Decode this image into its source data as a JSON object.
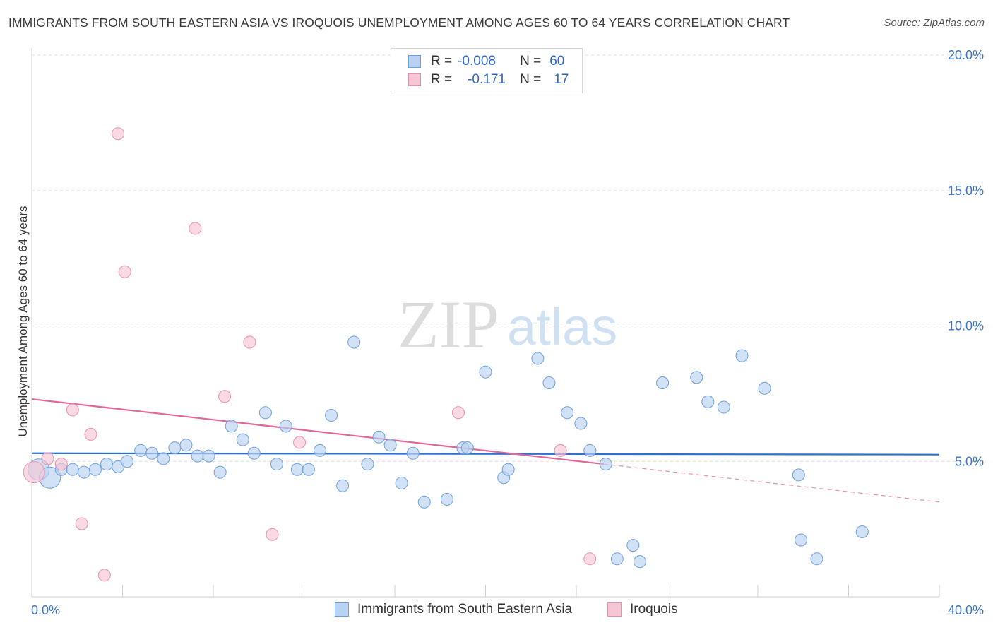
{
  "title": "IMMIGRANTS FROM SOUTH EASTERN ASIA VS IROQUOIS UNEMPLOYMENT AMONG AGES 60 TO 64 YEARS CORRELATION CHART",
  "source": "Source: ZipAtlas.com",
  "watermark": {
    "zip": "ZIP",
    "atlas": "atlas"
  },
  "legend": {
    "rows": [
      {
        "r_label": "R =",
        "r_value": "-0.008",
        "n_label": "N =",
        "n_value": "60"
      },
      {
        "r_label": "R =",
        "r_value": "-0.171",
        "n_label": "N =",
        "n_value": "17"
      }
    ]
  },
  "chart_data": {
    "type": "scatter",
    "title": "IMMIGRANTS FROM SOUTH EASTERN ASIA VS IROQUOIS UNEMPLOYMENT AMONG AGES 60 TO 64 YEARS CORRELATION CHART",
    "xlabel": "",
    "ylabel": "Unemployment Among Ages 60 to 64 years",
    "xlim": [
      0,
      40
    ],
    "ylim": [
      0,
      20
    ],
    "x_tick_labels": [
      "0.0%",
      "40.0%"
    ],
    "y_ticks": [
      5,
      10,
      15,
      20
    ],
    "y_tick_labels": [
      "5.0%",
      "10.0%",
      "15.0%",
      "20.0%"
    ],
    "grid": true,
    "legend_placement": "top-center and bottom",
    "series": [
      {
        "name": "Immigrants from South Eastern Asia",
        "color": "#6f9fdc",
        "fill": "#b9d2f1",
        "r": "-0.008",
        "n": "60",
        "trend": {
          "x": [
            0,
            40
          ],
          "y": [
            5.3,
            5.25
          ],
          "style": "solid"
        },
        "points": [
          [
            0.3,
            4.7,
            "L"
          ],
          [
            0.8,
            4.4,
            "L"
          ],
          [
            1.3,
            4.7
          ],
          [
            1.8,
            4.7
          ],
          [
            2.3,
            4.6
          ],
          [
            2.8,
            4.7
          ],
          [
            3.3,
            4.9
          ],
          [
            3.8,
            4.8
          ],
          [
            4.2,
            5.0
          ],
          [
            4.8,
            5.4
          ],
          [
            5.3,
            5.3
          ],
          [
            5.8,
            5.1
          ],
          [
            6.3,
            5.5
          ],
          [
            6.8,
            5.6
          ],
          [
            7.3,
            5.2
          ],
          [
            7.8,
            5.2
          ],
          [
            8.3,
            4.6
          ],
          [
            8.8,
            6.3
          ],
          [
            9.3,
            5.8
          ],
          [
            9.8,
            5.3
          ],
          [
            10.3,
            6.8
          ],
          [
            10.8,
            4.9
          ],
          [
            11.2,
            6.3
          ],
          [
            11.7,
            4.7
          ],
          [
            12.2,
            4.7
          ],
          [
            12.7,
            5.4
          ],
          [
            13.2,
            6.7
          ],
          [
            13.7,
            4.1
          ],
          [
            14.2,
            9.4
          ],
          [
            14.8,
            4.9
          ],
          [
            15.3,
            5.9
          ],
          [
            15.8,
            5.6
          ],
          [
            16.3,
            4.2
          ],
          [
            16.8,
            5.3
          ],
          [
            17.3,
            3.5
          ],
          [
            18.3,
            3.6
          ],
          [
            19.0,
            5.5
          ],
          [
            19.2,
            5.5
          ],
          [
            20.0,
            8.3
          ],
          [
            20.8,
            4.4
          ],
          [
            21.0,
            4.7
          ],
          [
            22.3,
            8.8
          ],
          [
            22.8,
            7.9
          ],
          [
            23.6,
            6.8
          ],
          [
            24.2,
            6.4
          ],
          [
            24.6,
            5.4
          ],
          [
            25.3,
            4.9
          ],
          [
            25.8,
            1.4
          ],
          [
            26.5,
            1.9
          ],
          [
            26.8,
            1.3
          ],
          [
            27.8,
            7.9
          ],
          [
            29.3,
            8.1
          ],
          [
            29.8,
            7.2
          ],
          [
            30.5,
            7.0
          ],
          [
            31.3,
            8.9
          ],
          [
            32.3,
            7.7
          ],
          [
            33.8,
            4.5
          ],
          [
            33.9,
            2.1
          ],
          [
            34.6,
            1.4
          ],
          [
            36.6,
            2.4
          ]
        ]
      },
      {
        "name": "Iroquois",
        "color": "#ec8fac",
        "fill": "#f6c6d5",
        "r": "-0.171",
        "n": "17",
        "trend": {
          "x": [
            0,
            25.2
          ],
          "y": [
            7.3,
            4.9
          ],
          "style": "solid",
          "extended": {
            "x": [
              25.2,
              40
            ],
            "y": [
              4.9,
              3.5
            ],
            "style": "dashed"
          }
        },
        "points": [
          [
            0.1,
            4.6,
            "L"
          ],
          [
            0.7,
            5.1
          ],
          [
            1.3,
            4.9
          ],
          [
            1.8,
            6.9
          ],
          [
            2.2,
            2.7
          ],
          [
            2.6,
            6.0
          ],
          [
            3.2,
            0.8
          ],
          [
            3.8,
            17.1
          ],
          [
            4.1,
            12.0
          ],
          [
            7.2,
            13.6
          ],
          [
            8.5,
            7.4
          ],
          [
            9.6,
            9.4
          ],
          [
            10.6,
            2.3
          ],
          [
            11.8,
            5.7
          ],
          [
            18.8,
            6.8
          ],
          [
            23.3,
            5.4
          ],
          [
            24.6,
            1.4
          ]
        ]
      }
    ]
  },
  "bottom_legend": [
    {
      "label": "Immigrants from South Eastern Asia"
    },
    {
      "label": "Iroquois"
    }
  ]
}
